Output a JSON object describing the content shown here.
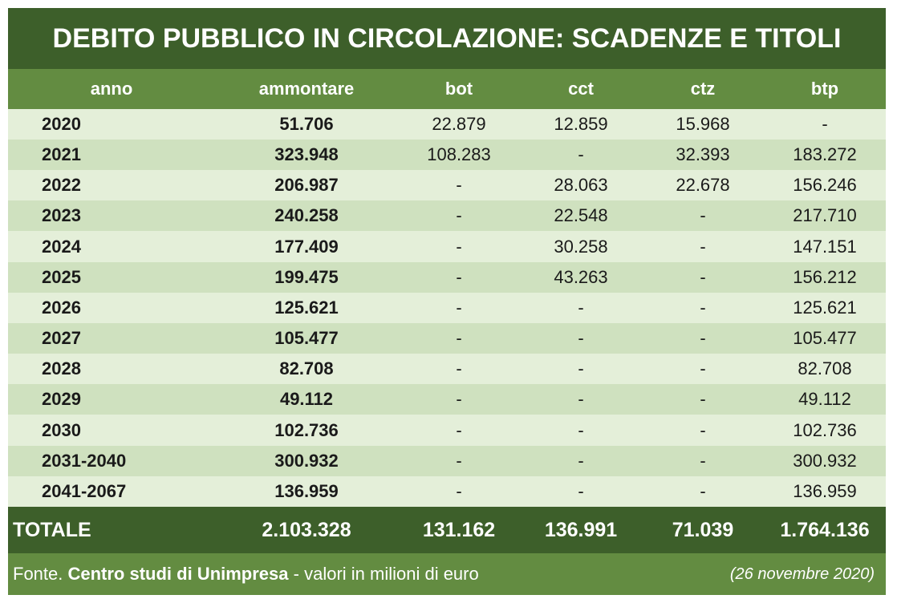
{
  "title": "DEBITO PUBBLICO IN CIRCOLAZIONE: SCADENZE E TITOLI",
  "columns": [
    "anno",
    "ammontare",
    "bot",
    "cct",
    "ctz",
    "btp"
  ],
  "rows": [
    {
      "anno": "2020",
      "ammontare": "51.706",
      "bot": "22.879",
      "cct": "12.859",
      "ctz": "15.968",
      "btp": "-"
    },
    {
      "anno": "2021",
      "ammontare": "323.948",
      "bot": "108.283",
      "cct": "-",
      "ctz": "32.393",
      "btp": "183.272"
    },
    {
      "anno": "2022",
      "ammontare": "206.987",
      "bot": "-",
      "cct": "28.063",
      "ctz": "22.678",
      "btp": "156.246"
    },
    {
      "anno": "2023",
      "ammontare": "240.258",
      "bot": "-",
      "cct": "22.548",
      "ctz": "-",
      "btp": "217.710"
    },
    {
      "anno": "2024",
      "ammontare": "177.409",
      "bot": "-",
      "cct": "30.258",
      "ctz": "-",
      "btp": "147.151"
    },
    {
      "anno": "2025",
      "ammontare": "199.475",
      "bot": "-",
      "cct": "43.263",
      "ctz": "-",
      "btp": "156.212"
    },
    {
      "anno": "2026",
      "ammontare": "125.621",
      "bot": "-",
      "cct": "-",
      "ctz": "-",
      "btp": "125.621"
    },
    {
      "anno": "2027",
      "ammontare": "105.477",
      "bot": "-",
      "cct": "-",
      "ctz": "-",
      "btp": "105.477"
    },
    {
      "anno": "2028",
      "ammontare": "82.708",
      "bot": "-",
      "cct": "-",
      "ctz": "-",
      "btp": "82.708"
    },
    {
      "anno": "2029",
      "ammontare": "49.112",
      "bot": "-",
      "cct": "-",
      "ctz": "-",
      "btp": "49.112"
    },
    {
      "anno": "2030",
      "ammontare": "102.736",
      "bot": "-",
      "cct": "-",
      "ctz": "-",
      "btp": "102.736"
    },
    {
      "anno": "2031-2040",
      "ammontare": "300.932",
      "bot": "-",
      "cct": "-",
      "ctz": "-",
      "btp": "300.932"
    },
    {
      "anno": "2041-2067",
      "ammontare": "136.959",
      "bot": "-",
      "cct": "-",
      "ctz": "-",
      "btp": "136.959"
    }
  ],
  "total": {
    "label": "TOTALE",
    "ammontare": "2.103.328",
    "bot": "131.162",
    "cct": "136.991",
    "ctz": "71.039",
    "btp": "1.764.136"
  },
  "footer": {
    "prefix": "Fonte. ",
    "source": "Centro studi di Unimpresa",
    "suffix": " - valori in milioni di euro",
    "date": "(26 novembre 2020)"
  },
  "colors": {
    "title_bg": "#3d5f2a",
    "header_bg": "#638c41",
    "row_light": "#e4efd9",
    "row_dark": "#cfe1bf",
    "total_bg": "#3d5f2a",
    "footer_bg": "#638c41"
  }
}
